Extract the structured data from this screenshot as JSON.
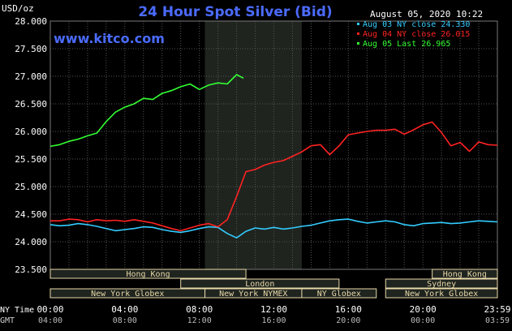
{
  "header": {
    "title": "24 Hour Spot Silver (Bid)",
    "unit": "USD/oz",
    "timestamp": "August 05, 2020 10:22",
    "watermark": "www.kitco.com"
  },
  "legend": [
    {
      "text": "Aug 03 NY close 24.330",
      "color": "#33ccff"
    },
    {
      "text": "Aug 04 NY close 26.015",
      "color": "#ff2222"
    },
    {
      "text": "Aug 05 Last 26.965",
      "color": "#33ff33"
    }
  ],
  "colors": {
    "background": "#000000",
    "grid": "#555555",
    "text": "#ffffff",
    "title": "#4b6bff",
    "session_shade": "#1f241f",
    "session_text": "#e8d8a8"
  },
  "sessions": {
    "row1": [
      {
        "label": "Hong Kong",
        "start_hour": 0,
        "end_hour": 10.5
      },
      {
        "label": "Hong Kong",
        "start_hour": 20.5,
        "end_hour": 24
      }
    ],
    "row2": [
      {
        "label": "London",
        "start_hour": 7,
        "end_hour": 15.5
      },
      {
        "label": "Sydney",
        "start_hour": 18,
        "end_hour": 24
      }
    ],
    "row3": [
      {
        "label": "New York Globex",
        "start_hour": 0,
        "end_hour": 8.3
      },
      {
        "label": "New York NYMEX",
        "start_hour": 8.3,
        "end_hour": 13.5
      },
      {
        "label": "NY Globex",
        "start_hour": 13.5,
        "end_hour": 17.5
      },
      {
        "label": "New York Globex",
        "start_hour": 18,
        "end_hour": 24
      }
    ]
  },
  "axis_footer": {
    "ny_label": "NY Time",
    "gmt_label": "GMT",
    "ny_ticks": [
      "00:00",
      "04:00",
      "08:00",
      "12:00",
      "16:00",
      "20:00",
      "23:59"
    ],
    "gmt_ticks": [
      "04:00",
      "08:00",
      "12:00",
      "16:00",
      "20:00",
      "00:00",
      "03:59"
    ]
  },
  "chart_data": {
    "type": "line",
    "title": "24 Hour Spot Silver (Bid)",
    "ylabel": "USD/oz",
    "xlabel": "NY Time",
    "ylim": [
      23.5,
      28.0
    ],
    "xlim": [
      0,
      24
    ],
    "y_ticks": [
      "23.500",
      "24.000",
      "24.500",
      "25.000",
      "25.500",
      "26.000",
      "26.500",
      "27.000",
      "27.500",
      "28.000"
    ],
    "highlight_range": [
      8.3,
      13.5
    ],
    "grid": true,
    "series": [
      {
        "name": "Aug 03 NY close 24.330",
        "color": "#33ccff",
        "x": [
          0,
          0.5,
          1,
          1.5,
          2,
          2.5,
          3,
          3.5,
          4,
          4.5,
          5,
          5.5,
          6,
          6.5,
          7,
          7.5,
          8,
          8.5,
          9,
          9.5,
          10,
          10.5,
          11,
          11.5,
          12,
          12.5,
          13,
          13.5,
          14,
          14.5,
          15,
          15.5,
          16,
          16.5,
          17,
          17.5,
          18,
          18.5,
          19,
          19.5,
          20,
          20.5,
          21,
          21.5,
          22,
          22.5,
          23,
          23.5,
          24
        ],
        "y": [
          24.31,
          24.29,
          24.3,
          24.33,
          24.31,
          24.28,
          24.24,
          24.2,
          24.22,
          24.24,
          24.27,
          24.26,
          24.22,
          24.19,
          24.17,
          24.2,
          24.24,
          24.27,
          24.26,
          24.15,
          24.07,
          24.19,
          24.25,
          24.23,
          24.26,
          24.23,
          24.25,
          24.28,
          24.3,
          24.34,
          24.38,
          24.4,
          24.41,
          24.37,
          24.34,
          24.36,
          24.38,
          24.36,
          24.31,
          24.29,
          24.33,
          24.34,
          24.35,
          24.33,
          24.34,
          24.36,
          24.38,
          24.37,
          24.36
        ]
      },
      {
        "name": "Aug 04 NY close 26.015",
        "color": "#ff2222",
        "x": [
          0,
          0.5,
          1,
          1.5,
          2,
          2.5,
          3,
          3.5,
          4,
          4.5,
          5,
          5.5,
          6,
          6.5,
          7,
          7.5,
          8,
          8.5,
          9,
          9.5,
          10,
          10.5,
          11,
          11.5,
          12,
          12.5,
          13,
          13.5,
          14,
          14.5,
          15,
          15.5,
          16,
          16.5,
          17,
          17.5,
          18,
          18.5,
          19,
          19.5,
          20,
          20.5,
          21,
          21.5,
          22,
          22.5,
          23,
          23.5,
          24
        ],
        "y": [
          24.38,
          24.38,
          24.41,
          24.4,
          24.36,
          24.4,
          24.38,
          24.39,
          24.37,
          24.4,
          24.37,
          24.34,
          24.29,
          24.24,
          24.2,
          24.25,
          24.3,
          24.33,
          24.27,
          24.4,
          24.82,
          25.27,
          25.31,
          25.39,
          25.44,
          25.47,
          25.55,
          25.63,
          25.74,
          25.76,
          25.58,
          25.74,
          25.94,
          25.97,
          26.0,
          26.02,
          26.02,
          26.04,
          25.95,
          26.03,
          26.12,
          26.17,
          25.98,
          25.74,
          25.8,
          25.64,
          25.81,
          25.76,
          25.75
        ]
      },
      {
        "name": "Aug 05 Last 26.965",
        "color": "#33ff33",
        "x": [
          0,
          0.5,
          1,
          1.5,
          2,
          2.5,
          3,
          3.5,
          4,
          4.5,
          5,
          5.5,
          6,
          6.5,
          7,
          7.5,
          8,
          8.5,
          9,
          9.5,
          10,
          10.37
        ],
        "y": [
          25.73,
          25.76,
          25.82,
          25.86,
          25.92,
          25.97,
          26.18,
          26.35,
          26.44,
          26.5,
          26.6,
          26.58,
          26.69,
          26.74,
          26.81,
          26.86,
          26.76,
          26.84,
          26.88,
          26.86,
          27.03,
          26.965
        ]
      }
    ]
  }
}
